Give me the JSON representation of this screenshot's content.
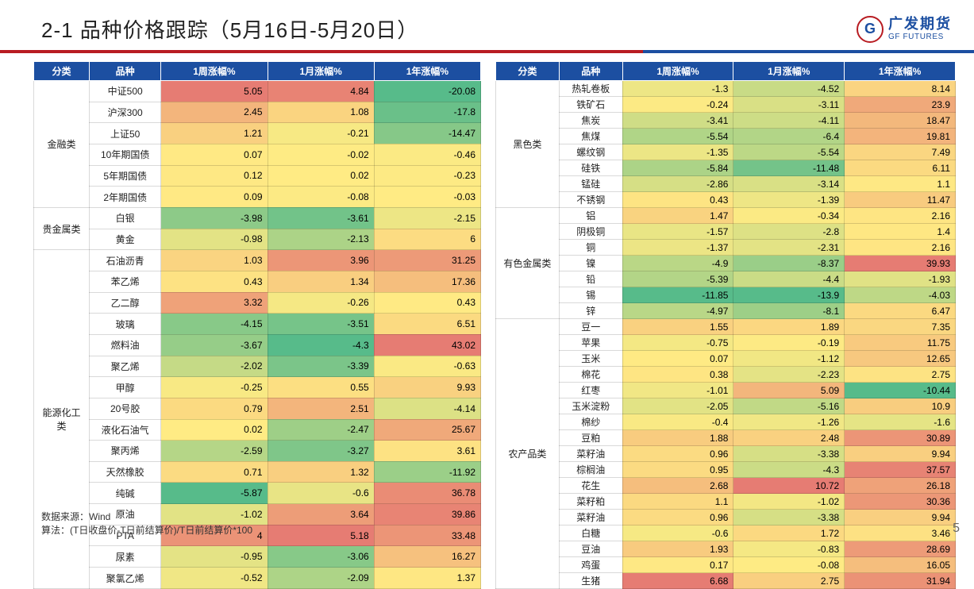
{
  "title": "2-1 品种价格跟踪（5月16日-5月20日）",
  "logo": {
    "cn": "广发期货",
    "en": "GF FUTURES"
  },
  "headers": [
    "分类",
    "品种",
    "1周涨幅%",
    "1月涨幅%",
    "1年涨幅%"
  ],
  "footer_source": "数据来源：Wind",
  "footer_formula": "算法：(T日收盘价-T日前结算价)/T日前结算价*100",
  "page_number": "5",
  "color_scale": {
    "min": "#57bb8a",
    "mid": "#ffeb84",
    "max": "#e67c73",
    "deep_red": "#e06666",
    "deep_green": "#3d9970"
  },
  "left": [
    {
      "category": "金融类",
      "rows": [
        {
          "name": "中证500",
          "w": 5.05,
          "m": 4.84,
          "y": -20.08
        },
        {
          "name": "沪深300",
          "w": 2.45,
          "m": 1.08,
          "y": -17.8
        },
        {
          "name": "上证50",
          "w": 1.21,
          "m": -0.21,
          "y": -14.47
        },
        {
          "name": "10年期国债",
          "w": 0.07,
          "m": -0.02,
          "y": -0.46
        },
        {
          "name": "5年期国债",
          "w": 0.12,
          "m": 0.02,
          "y": -0.23
        },
        {
          "name": "2年期国债",
          "w": 0.09,
          "m": -0.08,
          "y": -0.03
        }
      ]
    },
    {
      "category": "贵金属类",
      "rows": [
        {
          "name": "白银",
          "w": -3.98,
          "m": -3.61,
          "y": -2.15
        },
        {
          "name": "黄金",
          "w": -0.98,
          "m": -2.13,
          "y": 6
        }
      ]
    },
    {
      "category": "能源化工类",
      "rows": [
        {
          "name": "石油沥青",
          "w": 1.03,
          "m": 3.96,
          "y": 31.25
        },
        {
          "name": "苯乙烯",
          "w": 0.43,
          "m": 1.34,
          "y": 17.36
        },
        {
          "name": "乙二醇",
          "w": 3.32,
          "m": -0.26,
          "y": 0.43
        },
        {
          "name": "玻璃",
          "w": -4.15,
          "m": -3.51,
          "y": 6.51
        },
        {
          "name": "燃料油",
          "w": -3.67,
          "m": -4.3,
          "y": 43.02
        },
        {
          "name": "聚乙烯",
          "w": -2.02,
          "m": -3.39,
          "y": -0.63
        },
        {
          "name": "甲醇",
          "w": -0.25,
          "m": 0.55,
          "y": 9.93
        },
        {
          "name": "20号胶",
          "w": 0.79,
          "m": 2.51,
          "y": -4.14
        },
        {
          "name": "液化石油气",
          "w": 0.02,
          "m": -2.47,
          "y": 25.67
        },
        {
          "name": "聚丙烯",
          "w": -2.59,
          "m": -3.27,
          "y": 3.61
        },
        {
          "name": "天然橡胶",
          "w": 0.71,
          "m": 1.32,
          "y": -11.92
        },
        {
          "name": "纯碱",
          "w": -5.87,
          "m": -0.6,
          "y": 36.78
        },
        {
          "name": "原油",
          "w": -1.02,
          "m": 3.64,
          "y": 39.86
        },
        {
          "name": "PTA",
          "w": 4,
          "m": 5.18,
          "y": 33.48
        },
        {
          "name": "尿素",
          "w": -0.95,
          "m": -3.06,
          "y": 16.27
        },
        {
          "name": "聚氯乙烯",
          "w": -0.52,
          "m": -2.09,
          "y": 1.37
        }
      ]
    }
  ],
  "right": [
    {
      "category": "黑色类",
      "rows": [
        {
          "name": "热轧卷板",
          "w": -1.3,
          "m": -4.52,
          "y": 8.14
        },
        {
          "name": "铁矿石",
          "w": -0.24,
          "m": -3.11,
          "y": 23.9
        },
        {
          "name": "焦炭",
          "w": -3.41,
          "m": -4.11,
          "y": 18.47
        },
        {
          "name": "焦煤",
          "w": -5.54,
          "m": -6.4,
          "y": 19.81
        },
        {
          "name": "螺纹钢",
          "w": -1.35,
          "m": -5.54,
          "y": 7.49
        },
        {
          "name": "硅铁",
          "w": -5.84,
          "m": -11.48,
          "y": 6.11
        },
        {
          "name": "锰硅",
          "w": -2.86,
          "m": -3.14,
          "y": 1.1
        },
        {
          "name": "不锈钢",
          "w": 0.43,
          "m": -1.39,
          "y": 11.47
        }
      ]
    },
    {
      "category": "有色金属类",
      "rows": [
        {
          "name": "铝",
          "w": 1.47,
          "m": -0.34,
          "y": 2.16
        },
        {
          "name": "阴极铜",
          "w": -1.57,
          "m": -2.8,
          "y": 1.4
        },
        {
          "name": "铜",
          "w": -1.37,
          "m": -2.31,
          "y": 2.16
        },
        {
          "name": "镍",
          "w": -4.9,
          "m": -8.37,
          "y": 39.93
        },
        {
          "name": "铅",
          "w": -5.39,
          "m": -4.4,
          "y": -1.93
        },
        {
          "name": "锡",
          "w": -11.85,
          "m": -13.9,
          "y": -4.03
        },
        {
          "name": "锌",
          "w": -4.97,
          "m": -8.1,
          "y": 6.47
        }
      ]
    },
    {
      "category": "农产品类",
      "rows": [
        {
          "name": "豆一",
          "w": 1.55,
          "m": 1.89,
          "y": 7.35
        },
        {
          "name": "苹果",
          "w": -0.75,
          "m": -0.19,
          "y": 11.75
        },
        {
          "name": "玉米",
          "w": 0.07,
          "m": -1.12,
          "y": 12.65
        },
        {
          "name": "棉花",
          "w": 0.38,
          "m": -2.23,
          "y": 2.75
        },
        {
          "name": "红枣",
          "w": -1.01,
          "m": 5.09,
          "y": -10.44
        },
        {
          "name": "玉米淀粉",
          "w": -2.05,
          "m": -5.16,
          "y": 10.9
        },
        {
          "name": "棉纱",
          "w": -0.4,
          "m": -1.26,
          "y": -1.6
        },
        {
          "name": "豆粕",
          "w": 1.88,
          "m": 2.48,
          "y": 30.89
        },
        {
          "name": "菜籽油",
          "w": 0.96,
          "m": -3.38,
          "y": 9.94
        },
        {
          "name": "棕榈油",
          "w": 0.95,
          "m": -4.3,
          "y": 37.57
        },
        {
          "name": "花生",
          "w": 2.68,
          "m": 10.72,
          "y": 26.18
        },
        {
          "name": "菜籽粕",
          "w": 1.1,
          "m": -1.02,
          "y": 30.36
        },
        {
          "name": "菜籽油",
          "w": 0.96,
          "m": -3.38,
          "y": 9.94
        },
        {
          "name": "白糖",
          "w": -0.6,
          "m": 1.72,
          "y": 3.46
        },
        {
          "name": "豆油",
          "w": 1.93,
          "m": -0.83,
          "y": 28.69
        },
        {
          "name": "鸡蛋",
          "w": 0.17,
          "m": -0.08,
          "y": 16.05
        },
        {
          "name": "生猪",
          "w": 6.68,
          "m": 2.75,
          "y": 31.94
        }
      ]
    }
  ]
}
